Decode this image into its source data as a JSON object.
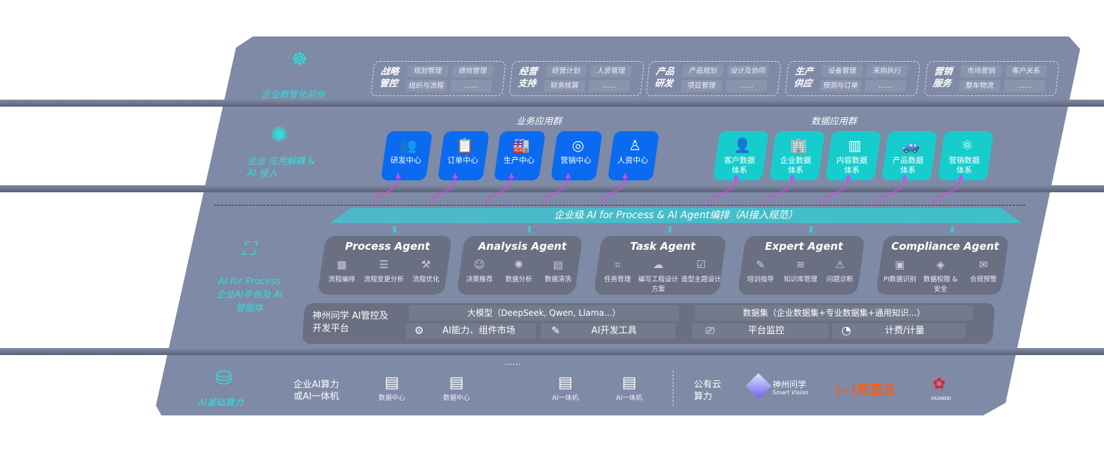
{
  "layers": {
    "front": {
      "label": "企业数智化前台",
      "icon": "brain-icon",
      "groups": [
        {
          "title": "战略管控",
          "items": [
            "规划管理",
            "绩效管理",
            "组织与流程",
            "……"
          ]
        },
        {
          "title": "经营支持",
          "items": [
            "经营计划",
            "人资管理",
            "财务核算",
            "……"
          ]
        },
        {
          "title": "产品研发",
          "items": [
            "产品规划",
            "设计及协同",
            "项目管理",
            "……"
          ]
        },
        {
          "title": "生产供应",
          "items": [
            "设备管理",
            "采购执行",
            "预测与订单",
            "……"
          ]
        },
        {
          "title": "营销服务",
          "items": [
            "市场营销",
            "客户关系",
            "整车物流",
            "……"
          ]
        }
      ]
    },
    "apps": {
      "label": "企业 应用解耦 & AI 侵入",
      "icon": "molecule-icon",
      "business_title": "业务应用群",
      "business": [
        {
          "label": "研发中心",
          "icon": "team-icon"
        },
        {
          "label": "订单中心",
          "icon": "clipboard-icon"
        },
        {
          "label": "生产中心",
          "icon": "factory-icon"
        },
        {
          "label": "营销中心",
          "icon": "target-icon"
        },
        {
          "label": "人资中心",
          "icon": "person-icon"
        }
      ],
      "data_title": "数据应用群",
      "data": [
        {
          "label": "客户数据体系",
          "icon": "user-icon"
        },
        {
          "label": "企业数据体系",
          "icon": "building-icon"
        },
        {
          "label": "内容数据体系",
          "icon": "books-icon"
        },
        {
          "label": "产品数据体系",
          "icon": "car-icon"
        },
        {
          "label": "营销数据体系",
          "icon": "atom-icon"
        }
      ],
      "colors": {
        "business": "#0a6af0",
        "data": "#17cccc",
        "arrow": "#e040e8"
      }
    },
    "ai": {
      "label": "AI for Process 企业AI平台及 AI智能体",
      "icon": "face-scan-icon",
      "banner": "企业级 AI for Process & AI Agent编排（AI接入规范）",
      "agents": [
        {
          "title": "Process Agent",
          "items": [
            "流程编排",
            "流程变更分析",
            "流程优化"
          ]
        },
        {
          "title": "Analysis Agent",
          "items": [
            "决策推荐",
            "数据分析",
            "数据清洗"
          ]
        },
        {
          "title": "Task Agent",
          "items": [
            "任务管理",
            "编写工程设计方案",
            "造型主题设计"
          ]
        },
        {
          "title": "Expert Agent",
          "items": [
            "培训指导",
            "知识库管理",
            "问题诊断"
          ]
        },
        {
          "title": "Compliance Agent",
          "items": [
            "PI数据识别",
            "数据权限 & 安全",
            "合规预警"
          ]
        }
      ],
      "platform": {
        "title": "神州问学 AI管控及开发平台",
        "llm": "大模型（DeepSeek, Qwen, Llama...）",
        "dataset": "数据集（企业数据集+专业数据集+通用知识...）",
        "tools": [
          "AI能力、组件市场",
          "AI开发工具",
          "平台监控",
          "计费/计量"
        ]
      }
    },
    "compute": {
      "label": "AI基础算力",
      "icon": "database-icon",
      "private_label": "企业AI算力 或AI一体机",
      "servers": [
        "数据中心",
        "数据中心",
        "……",
        "AI一体机",
        "AI一体机"
      ],
      "public_label": "公有云 算力",
      "vendors": [
        "神州问学",
        "Smart Vision",
        "阿里云",
        "HUAWEI"
      ]
    }
  }
}
